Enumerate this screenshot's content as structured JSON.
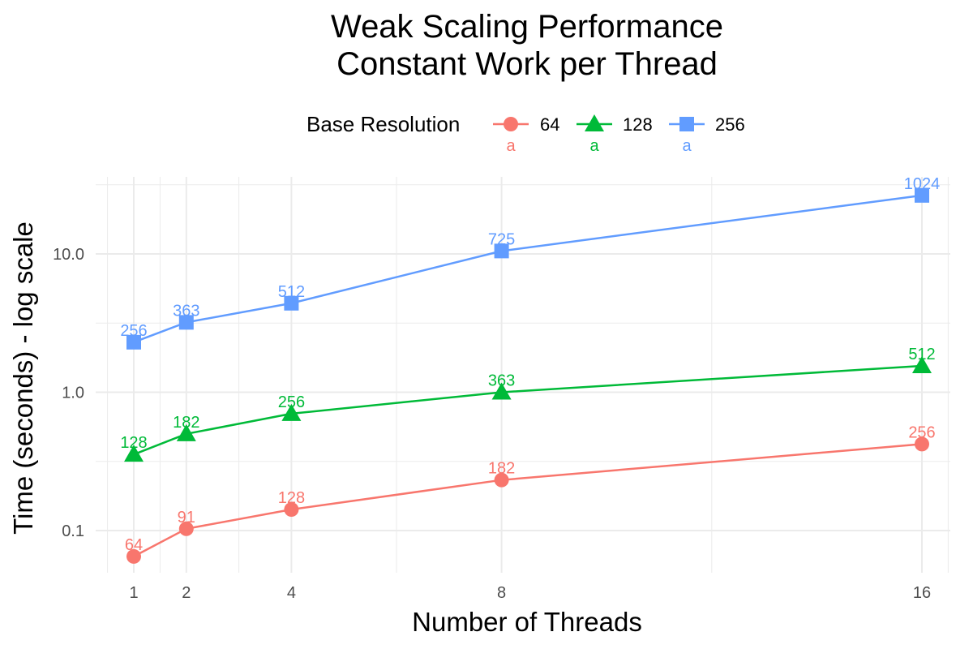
{
  "chart_data": {
    "type": "line",
    "title_lines": [
      "Weak Scaling Performance",
      "Constant Work per Thread"
    ],
    "xlabel": "Number of Threads",
    "ylabel": "Time (seconds) - log scale",
    "x": [
      1,
      2,
      4,
      8,
      16
    ],
    "x_ticks": [
      1,
      2,
      4,
      8,
      16
    ],
    "x_tick_labels": [
      "1",
      "2",
      "4",
      "8",
      "16"
    ],
    "xlim": [
      0.5,
      16.5
    ],
    "y_scale": "log10",
    "y_ticks": [
      0.1,
      1.0,
      10.0
    ],
    "y_tick_labels": [
      "0.1",
      "1.0",
      "10.0"
    ],
    "ylim": [
      0.05,
      35
    ],
    "grid": true,
    "legend": {
      "title": "Base Resolution",
      "position": "top",
      "sample_text": "a"
    },
    "series": [
      {
        "name": "64",
        "color": "#F8766D",
        "marker": "circle",
        "values": [
          0.065,
          0.103,
          0.142,
          0.232,
          0.422
        ],
        "point_labels": [
          "64",
          "91",
          "128",
          "182",
          "256"
        ]
      },
      {
        "name": "128",
        "color": "#00BA38",
        "marker": "triangle",
        "values": [
          0.355,
          0.5,
          0.7,
          1.0,
          1.55
        ],
        "point_labels": [
          "128",
          "182",
          "256",
          "363",
          "512"
        ]
      },
      {
        "name": "256",
        "color": "#619CFF",
        "marker": "square",
        "values": [
          2.3,
          3.2,
          4.4,
          10.5,
          26.5
        ],
        "point_labels": [
          "256",
          "363",
          "512",
          "725",
          "1024"
        ]
      }
    ]
  }
}
